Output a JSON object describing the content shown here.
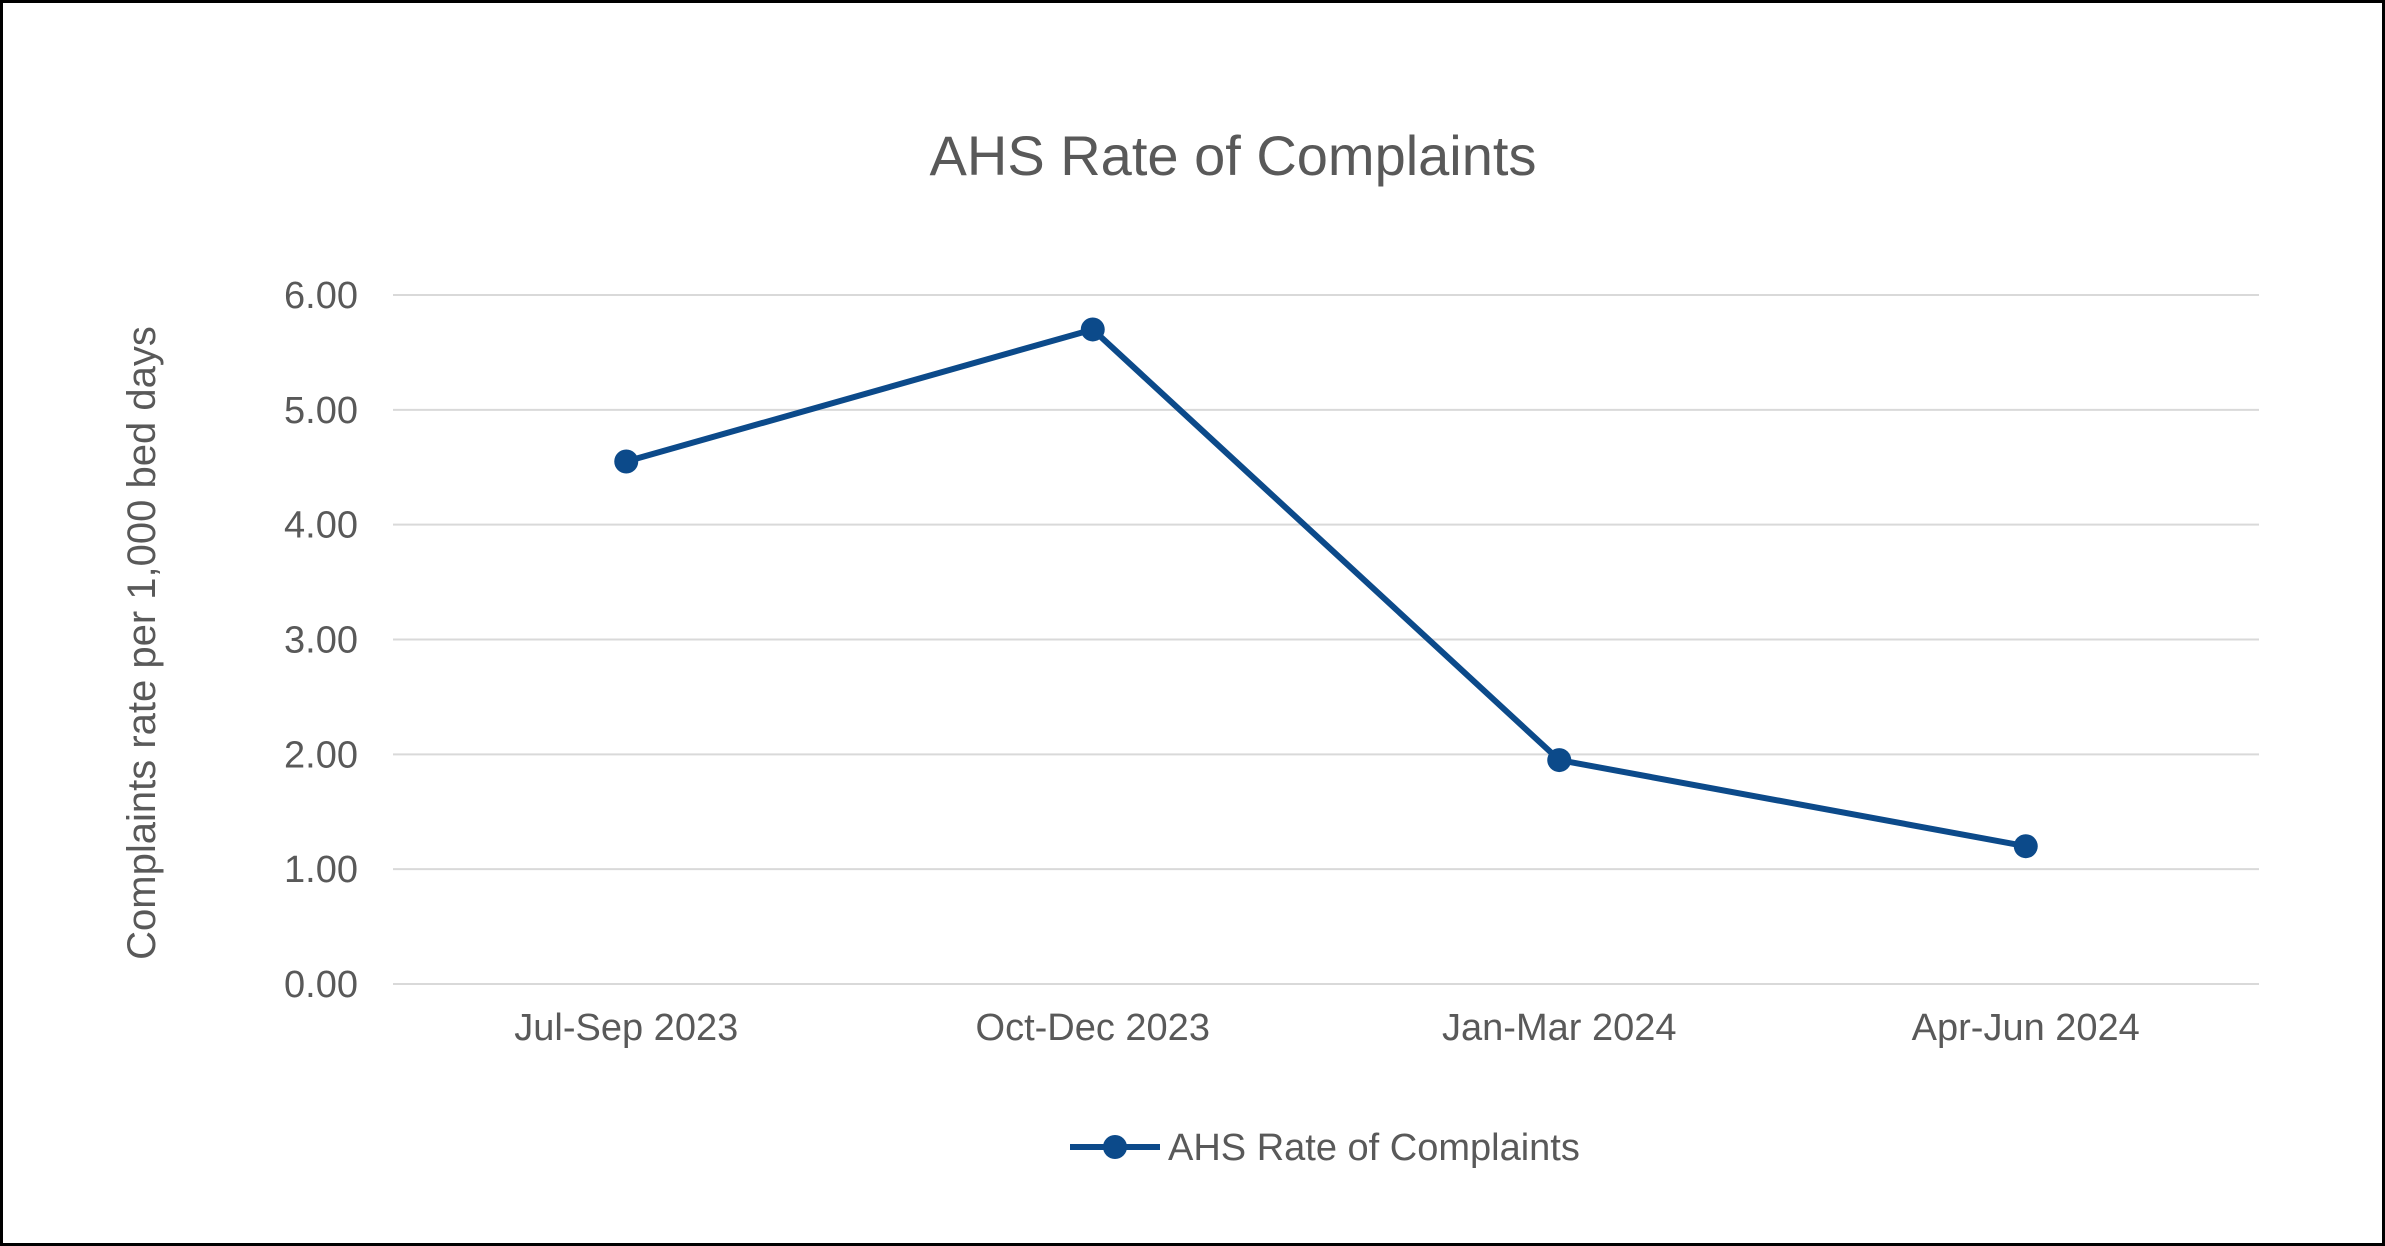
{
  "chart_data": {
    "type": "line",
    "title": "AHS Rate of Complaints",
    "xlabel": "",
    "ylabel": "Complaints rate  per 1,000  bed days",
    "categories": [
      "Jul-Sep 2023",
      "Oct-Dec 2023",
      "Jan-Mar 2024",
      "Apr-Jun 2024"
    ],
    "series": [
      {
        "name": "AHS Rate of Complaints",
        "values": [
          4.55,
          5.7,
          1.95,
          1.2
        ],
        "color": "#0C4A8A"
      }
    ],
    "ylim": [
      0,
      6
    ],
    "yticks": [
      "0.00",
      "1.00",
      "2.00",
      "3.00",
      "4.00",
      "5.00",
      "6.00"
    ],
    "grid": true,
    "legend_position": "bottom",
    "gridline_color": "#D9D9D9"
  }
}
